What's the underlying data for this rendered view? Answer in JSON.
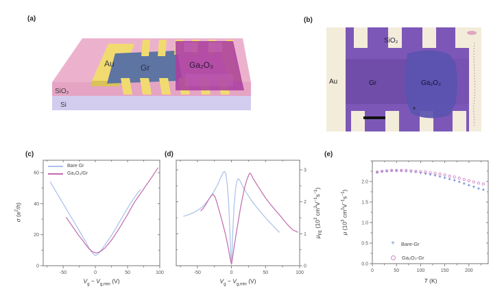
{
  "figure": {
    "panels": {
      "a": {
        "tag": "(a)",
        "labels": {
          "au": "Au",
          "gr": "Gr",
          "ga2o3": "Ga₂O₃",
          "sio2": "SiO₂",
          "si": "Si"
        },
        "colors": {
          "sio2_top": "#ecb2cd",
          "sio2_front": "#e5a4c4",
          "si_front": "#d2cdee",
          "gold": "#f1db70",
          "gold_edge": "#d9c258",
          "graphene": "#5e74a2",
          "ga2o3": "#ab3fa0"
        }
      },
      "b": {
        "tag": "(b)",
        "labels": {
          "sio2": "SiO₂",
          "au": "Au",
          "gr": "Gr",
          "ga2o3": "Ga₂O₃"
        },
        "colors": {
          "background": "#f3ecdb",
          "purple": "#7d57b8",
          "gr_region": "#6e4ca6",
          "ga2o3_flake": "#5a52b0",
          "scalebar": "#111111",
          "marking": "#c95fa8"
        }
      },
      "c": {
        "tag": "(c)"
      },
      "d": {
        "tag": "(d)"
      },
      "e": {
        "tag": "(e)"
      }
    }
  },
  "chart_data": [
    {
      "panel": "c",
      "type": "line",
      "xlabel": "Vg − Vg,min (V)",
      "xlabel_html": "<i>V</i><sub>g</sub> − <i>V</i><sub>g,min</sub> (V)",
      "ylabel": "σ (e²/h)",
      "ylabel_html": "<i>σ</i> (e<sup>2</sup>/<i>h</i>)",
      "xlim": [
        -81,
        100
      ],
      "ylim": [
        0,
        68
      ],
      "xtick_vals": [
        -50,
        0,
        50,
        100
      ],
      "xtick_labels": [
        "-50",
        "0",
        "50",
        "100"
      ],
      "ytick_vals": [
        0,
        20,
        40,
        60
      ],
      "ytick_labels": [
        "0",
        "20",
        "40",
        "60"
      ],
      "x_minor_step": 25,
      "y_minor_step": 10,
      "yside": "left",
      "legend_position": "top-left",
      "series": [
        {
          "name": "Bare Gr",
          "color": "#a9c0e8",
          "marker": "line",
          "x": [
            -70,
            -65,
            -60,
            -55,
            -50,
            -45,
            -40,
            -35,
            -30,
            -25,
            -20,
            -15,
            -10,
            -5,
            0,
            5,
            10,
            15,
            20,
            25,
            30,
            35,
            40,
            45,
            50,
            55,
            60,
            65,
            70
          ],
          "y": [
            54,
            50.5,
            47,
            43.5,
            40,
            36.5,
            33,
            29.5,
            26,
            22.5,
            19,
            15.5,
            11.5,
            8.5,
            6.5,
            8,
            10.5,
            13.5,
            16.5,
            19.5,
            23,
            26.5,
            30,
            33.5,
            37,
            40.5,
            43.5,
            46.5,
            49
          ]
        },
        {
          "name": "Ga₂O₃/Gr",
          "color": "#c06aad",
          "marker": "line",
          "x": [
            -45,
            -40,
            -35,
            -30,
            -25,
            -20,
            -15,
            -10,
            -5,
            0,
            5,
            10,
            15,
            20,
            25,
            30,
            35,
            40,
            45,
            50,
            55,
            60,
            65,
            70,
            75,
            80,
            85,
            90,
            97
          ],
          "y": [
            31,
            28,
            25,
            22,
            19,
            16.5,
            13.5,
            11,
            9.2,
            8.2,
            8.6,
            9.8,
            11.5,
            14,
            16.5,
            19.5,
            22.8,
            26,
            29.5,
            33,
            36.8,
            40.5,
            43.5,
            46.5,
            49.5,
            52.5,
            55.5,
            58.5,
            63
          ]
        }
      ]
    },
    {
      "panel": "d",
      "type": "line",
      "xlabel": "Vg − Vg,min (V)",
      "xlabel_html": "<i>V</i><sub>g</sub> − <i>V</i><sub>g,min</sub> (V)",
      "ylabel": "μFE (10³ cm²V⁻¹s⁻¹)",
      "ylabel_html": "<i>μ</i><sub>FE</sub> (10<sup>3</sup> cm<sup>2</sup>V<sup>−1</sup>s<sup>−1</sup>)",
      "xlim": [
        -81,
        100
      ],
      "ylim": [
        0,
        3.3
      ],
      "xtick_vals": [
        -50,
        0,
        50,
        100
      ],
      "xtick_labels": [
        "-50",
        "0",
        "50",
        "100"
      ],
      "ytick_vals": [
        0,
        1,
        2,
        3
      ],
      "ytick_labels": [
        "0",
        "1",
        "2",
        "3"
      ],
      "x_minor_step": 25,
      "y_minor_step": 0.5,
      "yside": "right",
      "legend_position": "none",
      "series": [
        {
          "name": "Bare Gr",
          "color": "#a9c0e8",
          "marker": "line",
          "x": [
            -70,
            -65,
            -60,
            -55,
            -50,
            -45,
            -40,
            -35,
            -30,
            -25,
            -20,
            -16,
            -12,
            -10,
            -8,
            -6,
            -4,
            -2,
            -1,
            0,
            1,
            2,
            4,
            6,
            8,
            10,
            12,
            15,
            20,
            25,
            30,
            35,
            40,
            45,
            50,
            55,
            60,
            65,
            70
          ],
          "y": [
            1.55,
            1.58,
            1.62,
            1.67,
            1.73,
            1.8,
            1.9,
            2.02,
            2.18,
            2.35,
            2.55,
            2.75,
            2.92,
            2.95,
            2.85,
            2.5,
            1.9,
            0.9,
            0.35,
            0.1,
            0.5,
            1.1,
            1.9,
            2.4,
            2.65,
            2.72,
            2.68,
            2.55,
            2.35,
            2.18,
            2.02,
            1.88,
            1.75,
            1.62,
            1.5,
            1.38,
            1.27,
            1.16,
            1.05
          ]
        },
        {
          "name": "Ga₂O₃/Gr",
          "color": "#c06aad",
          "marker": "line",
          "x": [
            -45,
            -42,
            -38,
            -34,
            -30,
            -27,
            -24,
            -21,
            -18,
            -15,
            -12,
            -9,
            -6,
            -3,
            -1,
            0,
            2,
            4,
            7,
            10,
            13,
            16,
            19,
            22,
            25,
            27,
            29,
            32,
            36,
            40,
            45,
            50,
            55,
            60,
            65,
            70,
            75,
            80,
            85,
            90,
            97
          ],
          "y": [
            1.72,
            1.78,
            1.9,
            2.05,
            2.18,
            2.24,
            2.15,
            1.95,
            1.72,
            1.5,
            1.25,
            1.0,
            0.7,
            0.35,
            0.12,
            0.05,
            0.3,
            0.6,
            1.0,
            1.4,
            1.78,
            2.12,
            2.42,
            2.65,
            2.82,
            2.9,
            2.85,
            2.72,
            2.58,
            2.45,
            2.28,
            2.12,
            1.98,
            1.85,
            1.72,
            1.6,
            1.47,
            1.34,
            1.22,
            1.12,
            1.05
          ]
        }
      ]
    },
    {
      "panel": "e",
      "type": "scatter",
      "xlabel": "T (K)",
      "xlabel_html": "<i>T</i> (K)",
      "ylabel": "μ (10³ cm²V⁻¹s⁻¹)",
      "ylabel_html": "<i>μ</i> (10<sup>3</sup> cm<sup>2</sup>V<sup>−1</sup>s<sup>−1</sup>)",
      "xlim": [
        0,
        240
      ],
      "ylim": [
        0,
        2.5
      ],
      "xtick_vals": [
        0,
        50,
        100,
        150,
        200
      ],
      "xtick_labels": [
        "0",
        "50",
        "100",
        "150",
        "200"
      ],
      "ytick_vals": [
        0,
        0.5,
        1,
        1.5,
        2
      ],
      "ytick_labels": [
        "0.0",
        "0.5",
        "1.0",
        "1.5",
        "2.0"
      ],
      "x_minor_step": 25,
      "y_minor_step": 0.25,
      "yside": "left",
      "legend_position": "bottom-center",
      "series": [
        {
          "name": "Bare-Gr",
          "color": "#6b86d6",
          "marker": "plus",
          "x": [
            10,
            20,
            30,
            40,
            50,
            60,
            70,
            80,
            90,
            100,
            110,
            120,
            130,
            140,
            150,
            160,
            170,
            180,
            190,
            200,
            210,
            220,
            230
          ],
          "y": [
            2.22,
            2.24,
            2.25,
            2.26,
            2.26,
            2.26,
            2.25,
            2.24,
            2.23,
            2.21,
            2.19,
            2.17,
            2.15,
            2.12,
            2.09,
            2.06,
            2.03,
            1.99,
            1.95,
            1.91,
            1.87,
            1.83,
            1.8
          ]
        },
        {
          "name": "Ga₂O₃-Gr",
          "color": "#cf84c6",
          "marker": "circle-open",
          "x": [
            10,
            20,
            30,
            40,
            50,
            60,
            70,
            80,
            90,
            100,
            110,
            120,
            130,
            140,
            150,
            160,
            170,
            180,
            190,
            200,
            210,
            220,
            230
          ],
          "y": [
            2.23,
            2.25,
            2.26,
            2.27,
            2.27,
            2.27,
            2.27,
            2.26,
            2.25,
            2.24,
            2.23,
            2.21,
            2.2,
            2.18,
            2.16,
            2.13,
            2.11,
            2.08,
            2.05,
            2.02,
            1.99,
            1.96,
            1.94
          ]
        }
      ]
    }
  ]
}
